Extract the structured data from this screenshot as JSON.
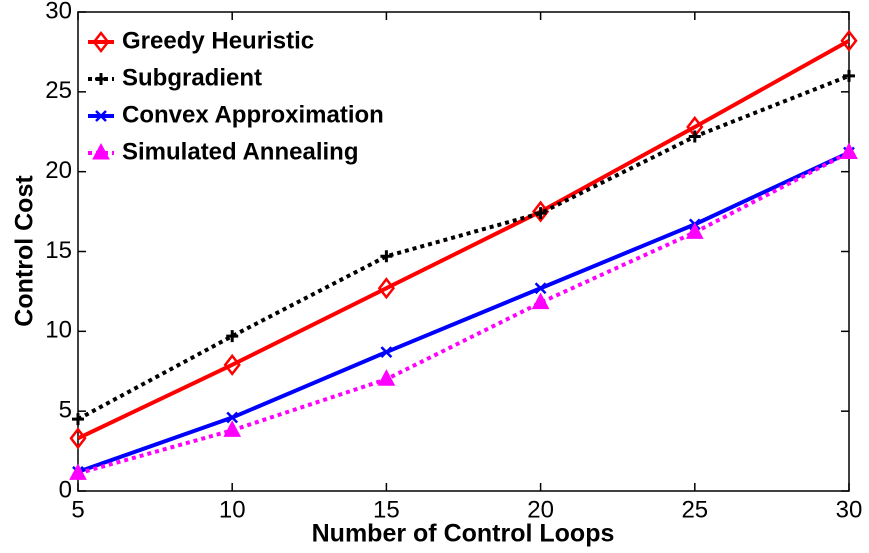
{
  "chart_data": {
    "type": "line",
    "xlabel": "Number of Control Loops",
    "ylabel": "Control Cost",
    "x": [
      5,
      10,
      15,
      20,
      25,
      30
    ],
    "series": [
      {
        "name": "Greedy Heuristic",
        "color": "#ff0000",
        "marker": "diamond",
        "linestyle": "solid",
        "values": [
          3.3,
          7.9,
          12.7,
          17.5,
          22.8,
          28.2
        ]
      },
      {
        "name": "Subgradient",
        "color": "#000000",
        "marker": "plus",
        "linestyle": "dotted",
        "values": [
          4.5,
          9.7,
          14.7,
          17.4,
          22.2,
          26.0
        ]
      },
      {
        "name": "Convex Approximation",
        "color": "#0000ff",
        "marker": "x",
        "linestyle": "solid",
        "values": [
          1.2,
          4.6,
          8.7,
          12.7,
          16.7,
          21.2
        ]
      },
      {
        "name": "Simulated Annealing",
        "color": "#ff00ff",
        "marker": "triangle",
        "linestyle": "dotted",
        "values": [
          1.1,
          3.8,
          7.0,
          11.8,
          16.2,
          21.2
        ]
      }
    ],
    "xlim": [
      5,
      30
    ],
    "xticks": [
      5,
      10,
      15,
      20,
      25,
      30
    ],
    "ylim": [
      0,
      30
    ],
    "yticks": [
      0,
      5,
      10,
      15,
      20,
      25,
      30
    ],
    "grid": false,
    "legend": "upper left"
  }
}
